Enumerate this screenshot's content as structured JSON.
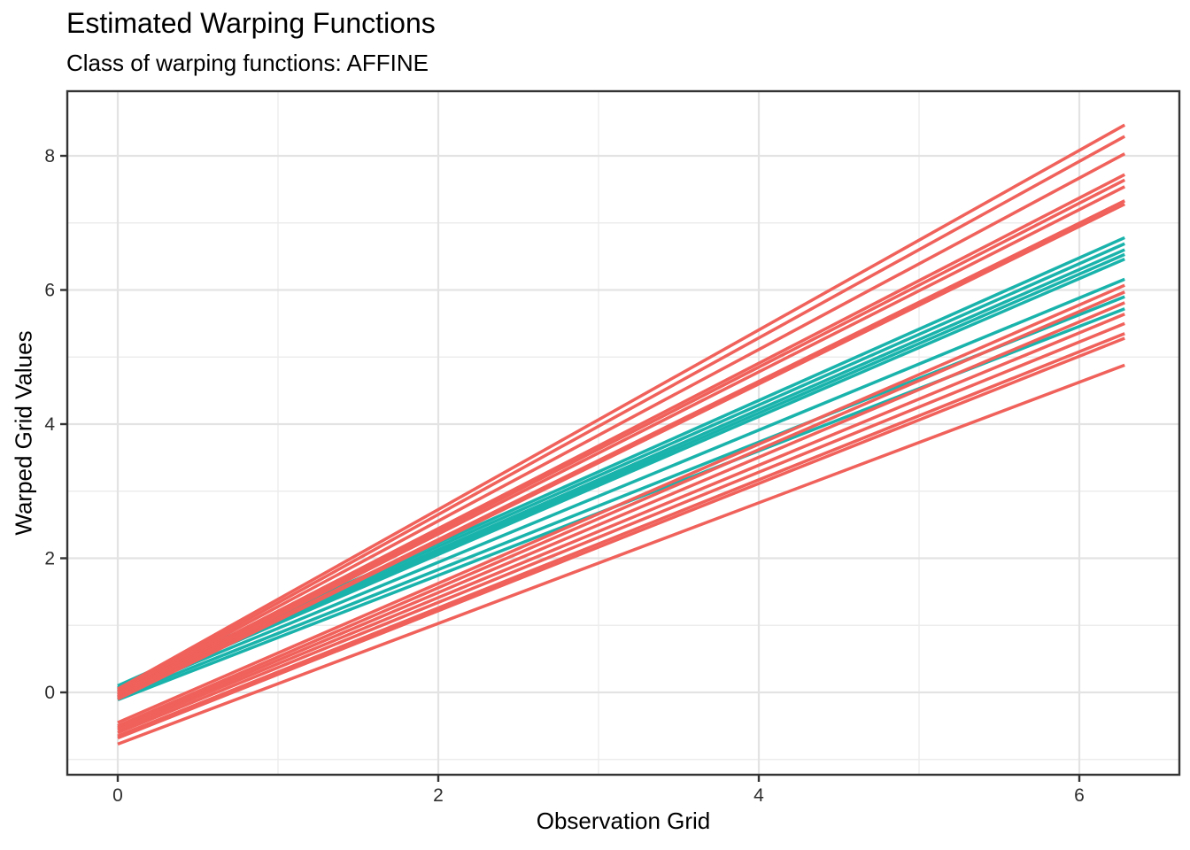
{
  "chart_data": {
    "type": "line",
    "title": "Estimated Warping Functions",
    "subtitle": "Class of warping functions: AFFINE",
    "xlabel": "Observation Grid",
    "ylabel": "Warped Grid Values",
    "x_ticks": [
      0,
      2,
      4,
      6
    ],
    "y_ticks": [
      0,
      2,
      4,
      6,
      8
    ],
    "x_minor_ticks": [
      1,
      3,
      5
    ],
    "y_minor_ticks": [
      -1,
      1,
      3,
      5,
      7
    ],
    "x_domain": [
      -0.32,
      6.63
    ],
    "y_domain": [
      -1.23,
      8.97
    ],
    "line_x_start": 0,
    "line_x_end": 6.283,
    "grid": {
      "major_color": "#e3e3e3",
      "minor_color": "#ececec"
    },
    "palette": {
      "red": "#F0615B",
      "teal": "#1AB3AC"
    },
    "axis_style": {
      "tick_color": "#333333",
      "panel_border_color": "#343434",
      "label_color": "#2e2e2e"
    },
    "series": [
      {
        "group": "teal",
        "y_start": 0.1,
        "y_end": 6.78
      },
      {
        "group": "teal",
        "y_start": 0.07,
        "y_end": 6.69
      },
      {
        "group": "teal",
        "y_start": 0.04,
        "y_end": 6.6
      },
      {
        "group": "teal",
        "y_start": 0.02,
        "y_end": 6.53
      },
      {
        "group": "teal",
        "y_start": 0.0,
        "y_end": 6.46
      },
      {
        "group": "teal",
        "y_start": -0.03,
        "y_end": 6.16
      },
      {
        "group": "teal",
        "y_start": -0.07,
        "y_end": 5.9
      },
      {
        "group": "teal",
        "y_start": -0.11,
        "y_end": 5.72
      },
      {
        "group": "red",
        "y_start": 0.05,
        "y_end": 8.46
      },
      {
        "group": "red",
        "y_start": 0.02,
        "y_end": 8.29
      },
      {
        "group": "red",
        "y_start": 0.0,
        "y_end": 8.03
      },
      {
        "group": "red",
        "y_start": -0.02,
        "y_end": 7.72
      },
      {
        "group": "red",
        "y_start": -0.04,
        "y_end": 7.64
      },
      {
        "group": "red",
        "y_start": -0.06,
        "y_end": 7.54
      },
      {
        "group": "red",
        "y_start": -0.08,
        "y_end": 7.33
      },
      {
        "group": "red",
        "y_start": -0.1,
        "y_end": 7.28
      },
      {
        "group": "red",
        "y_start": -0.45,
        "y_end": 6.07
      },
      {
        "group": "red",
        "y_start": -0.5,
        "y_end": 5.97
      },
      {
        "group": "red",
        "y_start": -0.53,
        "y_end": 5.81
      },
      {
        "group": "red",
        "y_start": -0.56,
        "y_end": 5.64
      },
      {
        "group": "red",
        "y_start": -0.6,
        "y_end": 5.5
      },
      {
        "group": "red",
        "y_start": -0.65,
        "y_end": 5.35
      },
      {
        "group": "red",
        "y_start": -0.68,
        "y_end": 5.28
      },
      {
        "group": "red",
        "y_start": -0.77,
        "y_end": 4.88
      }
    ]
  }
}
